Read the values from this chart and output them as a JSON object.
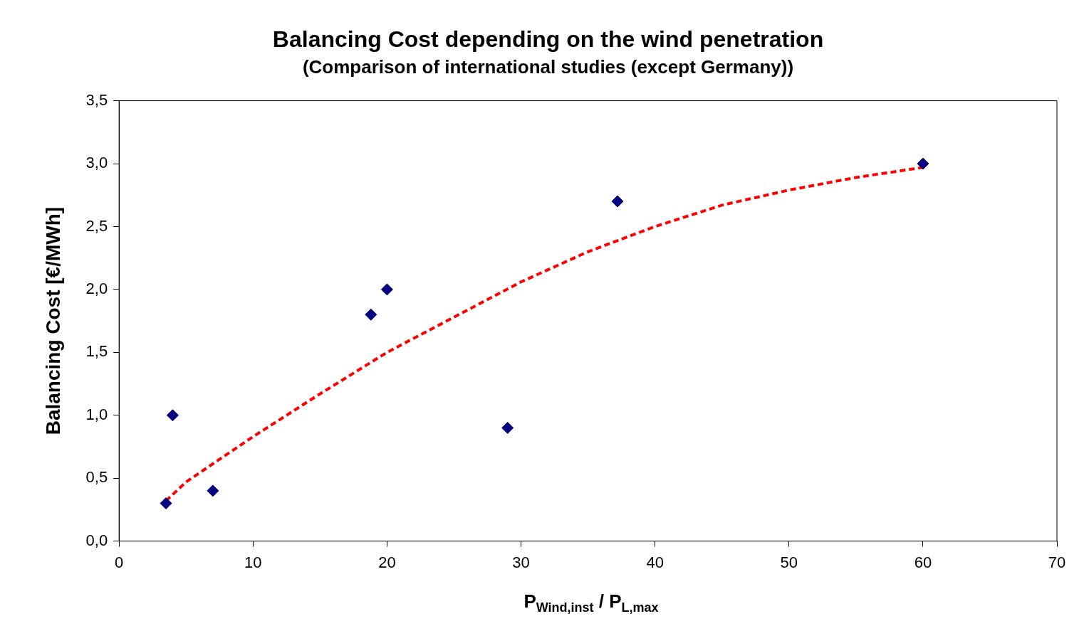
{
  "chart_data": {
    "type": "scatter",
    "title": "Balancing Cost depending on the wind penetration",
    "subtitle": "(Comparison of international studies (except Germany))",
    "xlabel": "P$_{Wind,inst}$ / P$_{L,max}$",
    "ylabel": "Balancing Cost [€/MWh]",
    "series": [
      {
        "color": "#000080",
        "x": [
          3.5,
          4,
          7,
          18.8,
          20,
          29,
          37.2,
          60
        ],
        "values": [
          0.3,
          1.0,
          0.4,
          1.8,
          2.0,
          0.9,
          2.7,
          3.0
        ]
      },
      {
        "type": "line",
        "color": "#ff0000",
        "line_style": "dashed",
        "marker": "none",
        "x": [
          3.5,
          5,
          10,
          15,
          20,
          25,
          30,
          35,
          40,
          45,
          50,
          55,
          60
        ],
        "values": [
          0.32,
          0.47,
          0.83,
          1.17,
          1.5,
          1.78,
          2.06,
          2.3,
          2.5,
          2.67,
          2.79,
          2.89,
          2.97
        ]
      }
    ],
    "xlim": [
      0,
      70
    ],
    "xticks": [
      0,
      10,
      20,
      30,
      40,
      50,
      60,
      70
    ],
    "ylim": [
      0,
      3.5
    ],
    "yticks": [
      {
        "value": 0,
        "label": "0,0"
      },
      {
        "value": 0.5,
        "label": "0,5"
      },
      {
        "value": 1,
        "label": "1,0"
      },
      {
        "value": 1.5,
        "label": "1,5"
      },
      {
        "value": 2,
        "label": "2,0"
      },
      {
        "value": 2.5,
        "label": "2,5"
      },
      {
        "value": 3,
        "label": "3,0"
      },
      {
        "value": 3.5,
        "label": "3,5"
      }
    ],
    "marker": "diamond",
    "grid": false,
    "legend": false
  }
}
